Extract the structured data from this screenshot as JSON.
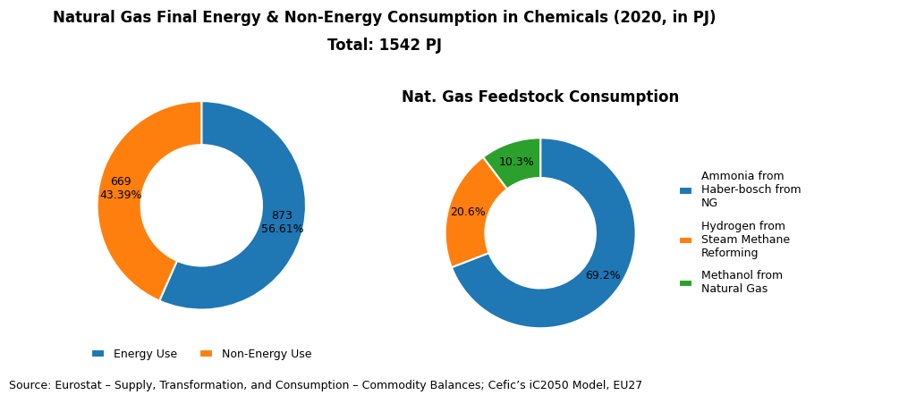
{
  "title": "Natural Gas Final Energy & Non-Energy Consumption in Chemicals (2020, in PJ)",
  "subtitle": "Total: 1542 PJ",
  "annotations": [
    "Source: Eurostat – Supply, Transformation, and Consumption – Commodity Balances; Cefic’s iC2050 Model, EU27"
  ],
  "chart_data": [
    {
      "type": "pie",
      "categories": [
        "Energy Use",
        "Non-Energy Use"
      ],
      "values": [
        873,
        669
      ],
      "value_labels": [
        "873\n56.61%",
        "669\n43.39%"
      ],
      "data_labels": true,
      "legend": "upper center"
    },
    {
      "type": "pie",
      "title": "Nat. Gas Feedstock Consumption",
      "categories": [
        "Ammonia from\nHaber-bosch from\nNG",
        "Hydrogen from\nSteam Methane\nReforming",
        "Methanol from\nNatural Gas"
      ],
      "values": [
        69.2,
        20.6,
        10.3
      ],
      "value_labels": [
        "69.2%",
        "20.6%",
        "10.3%"
      ],
      "data_labels": true,
      "legend": "center left"
    }
  ]
}
